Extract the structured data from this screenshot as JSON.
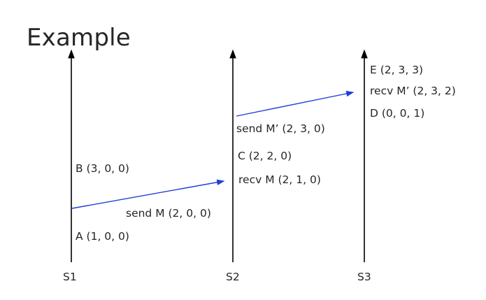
{
  "title": "Example",
  "servers": [
    "S1",
    "S2",
    "S3"
  ],
  "events": {
    "A": "A (1, 0, 0)",
    "B": "B  (3, 0, 0)",
    "send_m": "send M (2, 0, 0)",
    "recv_m": "recv M (2, 1, 0)",
    "C": "C (2, 2, 0)",
    "send_m2": "send M’ (2, 3, 0)",
    "D": "D (0, 0, 1)",
    "recv_m2": "recv M’ (2, 3, 2)",
    "E": "E (2, 3, 3)"
  },
  "colors": {
    "timeline": "#000000",
    "message": "#1f3fd6"
  }
}
